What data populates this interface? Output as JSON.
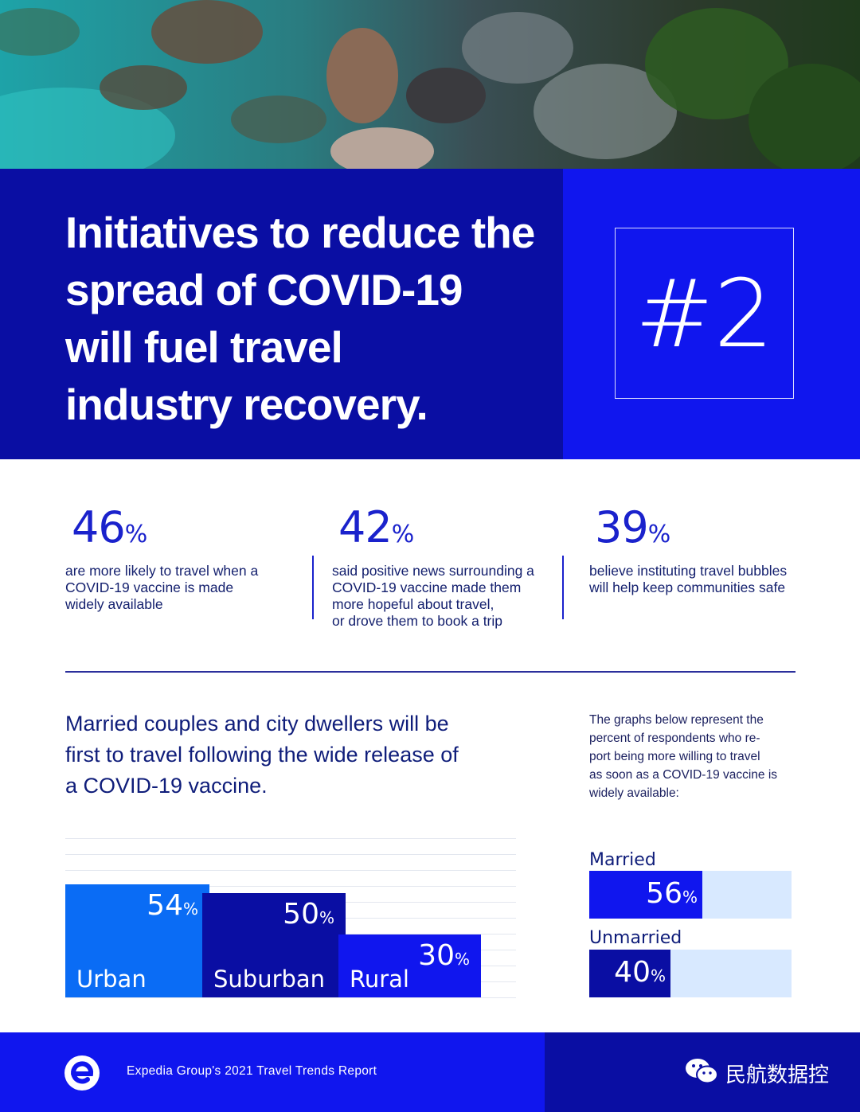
{
  "header": {
    "title": "Initiatives to reduce the\nspread of COVID-19\nwill fuel travel\nindustry recovery.",
    "rank": "#2"
  },
  "stats": [
    {
      "value": "46",
      "unit": "%",
      "desc": "are more likely to travel when a\nCOVID-19 vaccine is made\nwidely available"
    },
    {
      "value": "42",
      "unit": "%",
      "desc": "said positive news surrounding a\nCOVID-19 vaccine made them\nmore hopeful about travel,\nor drove them to book a trip"
    },
    {
      "value": "39",
      "unit": "%",
      "desc": "believe instituting travel bubbles\nwill help keep communities safe"
    }
  ],
  "section": {
    "subhead": "Married couples and city dwellers will be\nfirst to travel following the wide release of\na COVID-19 vaccine.",
    "note": "The graphs below represent the\npercent of respondents who re-\nport being more willing to travel\nas soon as a COVID-19 vaccine is\nwidely available:"
  },
  "chart_data": [
    {
      "type": "bar",
      "categories": [
        "Urban",
        "Suburban",
        "Rural"
      ],
      "values": [
        54,
        50,
        30
      ],
      "unit": "%",
      "colors": [
        "#0a6cf5",
        "#0a0ea3",
        "#1016ee"
      ]
    },
    {
      "type": "bar",
      "orientation": "horizontal",
      "categories": [
        "Married",
        "Unmarried"
      ],
      "values": [
        56,
        40
      ],
      "unit": "%",
      "colors": [
        "#1016ee",
        "#0a0ea3"
      ],
      "track_color": "#d8e9ff"
    }
  ],
  "footer": {
    "report": "Expedia Group's 2021 Travel Trends Report",
    "wechat_label": "民航数据控",
    "logo_icon": "expedia-logo-icon",
    "wechat_icon": "wechat-icon"
  },
  "colors": {
    "navy": "#0a0ea3",
    "royal": "#1016ee",
    "azure": "#0a6cf5",
    "text": "#0f1d7a"
  }
}
